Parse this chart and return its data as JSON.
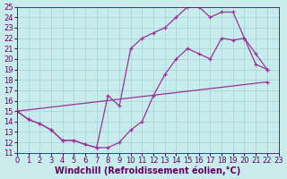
{
  "xlabel": "Windchill (Refroidissement éolien,°C)",
  "xlim": [
    0,
    23
  ],
  "ylim": [
    11,
    25
  ],
  "xticks": [
    0,
    1,
    2,
    3,
    4,
    5,
    6,
    7,
    8,
    9,
    10,
    11,
    12,
    13,
    14,
    15,
    16,
    17,
    18,
    19,
    20,
    21,
    22,
    23
  ],
  "yticks": [
    11,
    12,
    13,
    14,
    15,
    16,
    17,
    18,
    19,
    20,
    21,
    22,
    23,
    24,
    25
  ],
  "bg_color": "#c8ecec",
  "grid_color": "#a8d8d8",
  "line_color": "#993399",
  "line1_x": [
    0,
    1,
    2,
    3,
    4,
    5,
    6,
    7,
    8,
    9,
    10,
    11,
    12,
    13,
    14,
    15,
    16,
    17,
    18,
    19,
    20,
    21,
    22
  ],
  "line1_y": [
    15.0,
    14.2,
    13.8,
    13.2,
    12.2,
    12.2,
    11.8,
    11.5,
    11.5,
    12.0,
    13.2,
    14.0,
    16.5,
    18.5,
    20.0,
    21.0,
    20.5,
    20.0,
    22.0,
    21.8,
    22.0,
    19.5,
    19.0
  ],
  "line2_x": [
    0,
    1,
    2,
    3,
    4,
    5,
    6,
    7,
    8,
    9,
    10,
    11,
    12,
    13,
    14,
    15,
    16,
    17,
    18,
    19,
    20,
    21,
    22
  ],
  "line2_y": [
    15.0,
    14.2,
    13.8,
    13.2,
    12.2,
    12.2,
    11.8,
    11.5,
    16.5,
    15.5,
    21.0,
    22.0,
    22.5,
    23.0,
    24.0,
    25.0,
    25.0,
    24.0,
    24.5,
    24.5,
    22.0,
    20.5,
    19.0
  ],
  "line3_x": [
    0,
    22
  ],
  "line3_y": [
    15.0,
    17.8
  ],
  "font_size_label": 7,
  "font_size_tick": 6
}
